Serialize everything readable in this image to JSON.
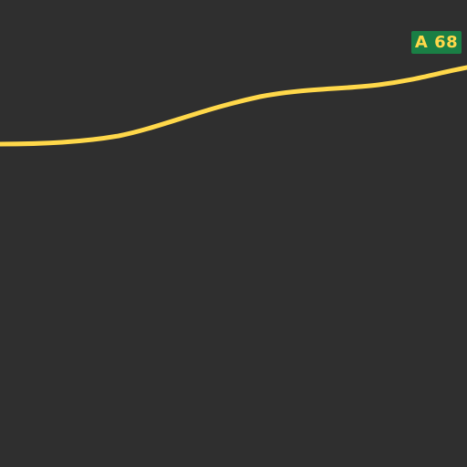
{
  "map": {
    "background_color": "#2f2f2f",
    "road": {
      "name": "A 68",
      "color": "#ffd84a",
      "shield_color": "#1a7f45",
      "shield_text_color": "#ffd84a"
    }
  }
}
